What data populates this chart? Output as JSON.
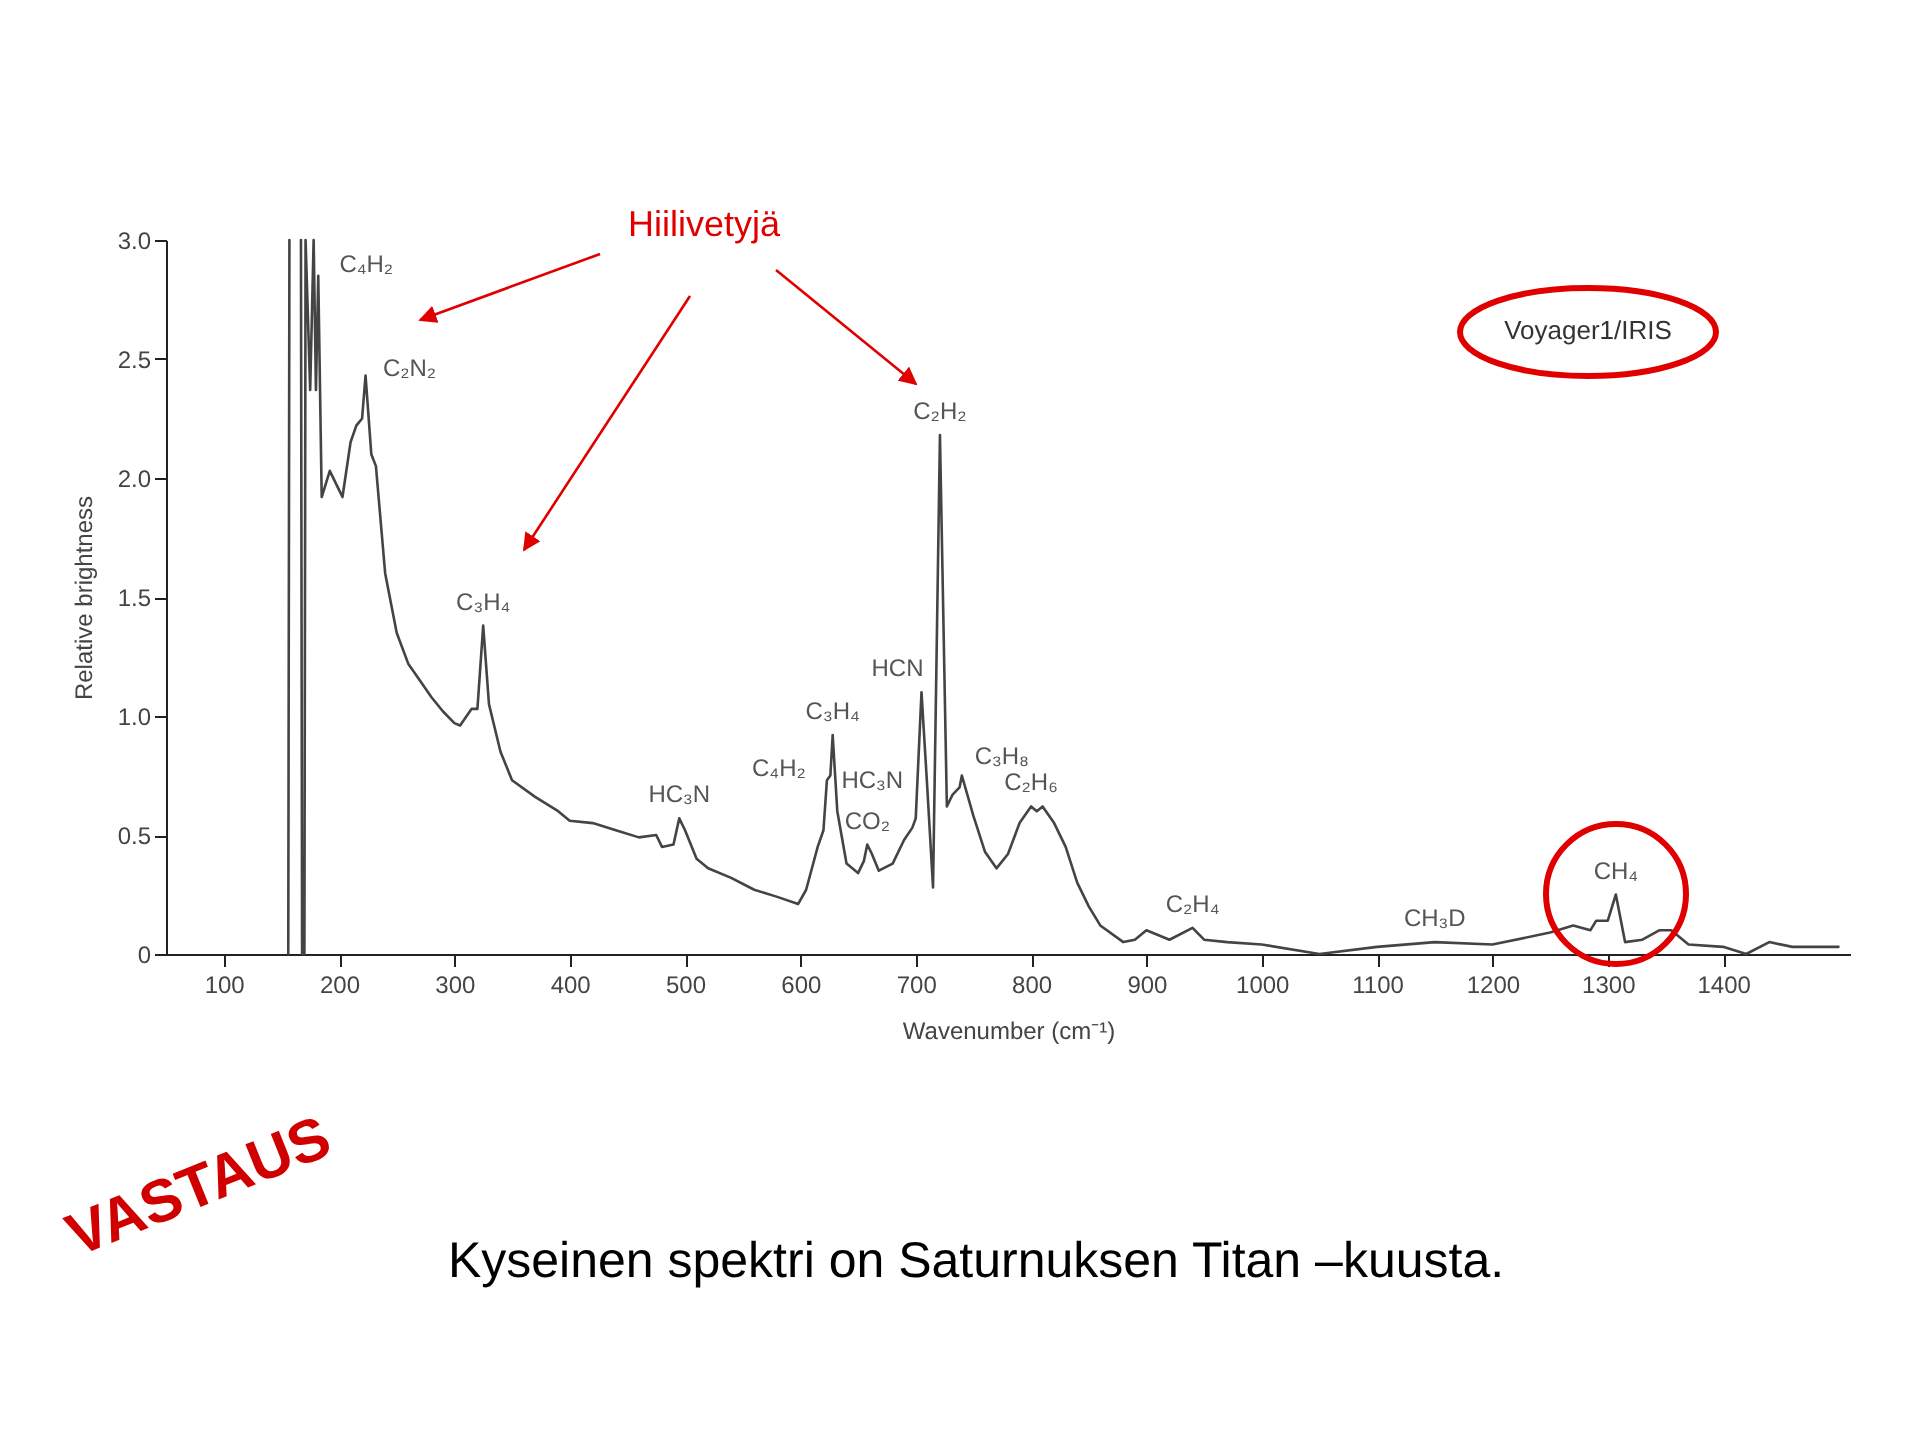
{
  "chart_data": {
    "type": "line",
    "xlabel": "Wavenumber (cm⁻¹)",
    "ylabel": "Relative brightness",
    "xlim": [
      50,
      1510
    ],
    "xticks": [
      100,
      200,
      300,
      400,
      500,
      600,
      700,
      800,
      900,
      1000,
      1100,
      1200,
      1300,
      1400
    ],
    "ylim": [
      0,
      3
    ],
    "yticks": [
      0,
      0.5,
      {
        "value": 1,
        "label": "1.0"
      },
      1.5,
      {
        "value": 2,
        "label": "2.0"
      },
      2.5,
      {
        "value": 3,
        "label": "3.0"
      }
    ],
    "grid": false,
    "legend": false,
    "marker": "none",
    "line_style": "solid",
    "x": [
      156,
      157,
      162,
      167,
      168,
      170,
      171,
      175,
      178,
      180,
      182,
      185,
      192,
      200,
      203,
      210,
      215,
      220,
      223,
      228,
      232,
      240,
      250,
      260,
      270,
      280,
      290,
      300,
      305,
      315,
      320,
      325,
      330,
      340,
      350,
      370,
      390,
      400,
      420,
      440,
      460,
      475,
      480,
      490,
      495,
      500,
      510,
      520,
      540,
      560,
      580,
      598,
      605,
      615,
      620,
      623,
      626,
      628,
      632,
      640,
      650,
      655,
      658,
      662,
      668,
      680,
      690,
      697,
      700,
      705,
      710,
      715,
      721,
      727,
      732,
      738,
      740,
      750,
      760,
      770,
      780,
      790,
      800,
      805,
      810,
      820,
      830,
      840,
      850,
      860,
      880,
      890,
      900,
      910,
      920,
      940,
      950,
      970,
      1000,
      1050,
      1100,
      1150,
      1200,
      1250,
      1270,
      1285,
      1290,
      1300,
      1307,
      1315,
      1330,
      1345,
      1355,
      1370,
      1400,
      1420,
      1440,
      1460,
      1500
    ],
    "series": [
      {
        "color": "#444444",
        "values": [
          0,
          3,
          null,
          3,
          0,
          0,
          3,
          2.37,
          3,
          2.37,
          2.85,
          1.92,
          2.03,
          1.95,
          1.92,
          2.15,
          2.22,
          2.25,
          2.43,
          2.1,
          2.05,
          1.6,
          1.35,
          1.22,
          1.15,
          1.08,
          1.02,
          0.97,
          0.96,
          1.03,
          1.03,
          1.38,
          1.05,
          0.85,
          0.73,
          0.66,
          0.6,
          0.56,
          0.55,
          0.52,
          0.49,
          0.5,
          0.45,
          0.46,
          0.57,
          0.52,
          0.4,
          0.36,
          0.32,
          0.27,
          0.24,
          0.21,
          0.27,
          0.45,
          0.52,
          0.73,
          0.75,
          0.92,
          0.6,
          0.38,
          0.34,
          0.39,
          0.46,
          0.42,
          0.35,
          0.38,
          0.48,
          0.53,
          0.57,
          1.1,
          0.7,
          0.28,
          2.18,
          0.62,
          0.67,
          0.7,
          0.75,
          0.58,
          0.43,
          0.36,
          0.42,
          0.55,
          0.62,
          0.6,
          0.62,
          0.55,
          0.45,
          0.3,
          0.2,
          0.12,
          0.05,
          0.06,
          0.1,
          0.08,
          0.06,
          0.11,
          0.06,
          0.05,
          0.04,
          0.0,
          0.03,
          0.05,
          0.04,
          0.09,
          0.12,
          0.1,
          0.14,
          0.14,
          0.25,
          0.05,
          0.06,
          0.1,
          0.1,
          0.04,
          0.03,
          0.0,
          0.05,
          0.03,
          0.03
        ]
      }
    ],
    "annotations": [
      {
        "text": "C₄H₂",
        "x": 182,
        "y": 2.85
      },
      {
        "text": "C₂N₂",
        "x": 223,
        "y": 2.43
      },
      {
        "text": "C₃H₄",
        "x": 325,
        "y": 1.38
      },
      {
        "text": "HC₃N",
        "x": 495,
        "y": 0.57
      },
      {
        "text": "C₄H₂",
        "x": 623,
        "y": 0.73
      },
      {
        "text": "C₃H₄",
        "x": 628,
        "y": 0.92
      },
      {
        "text": "HCN",
        "x": 705,
        "y": 1.1
      },
      {
        "text": "HC₃N",
        "x": 697,
        "y": 0.53
      },
      {
        "text": "CO₂",
        "x": 658,
        "y": 0.46
      },
      {
        "text": "C₂H₂",
        "x": 721,
        "y": 2.18
      },
      {
        "text": "C₃H₈",
        "x": 740,
        "y": 0.75
      },
      {
        "text": "C₂H₆",
        "x": 800,
        "y": 0.62
      },
      {
        "text": "C₂H₄",
        "x": 940,
        "y": 0.11
      },
      {
        "text": "CH₃D",
        "x": 1150,
        "y": 0.05
      },
      {
        "text": "CH₄",
        "x": 1307,
        "y": 0.25
      },
      "Hiilivetyjä",
      "Voyager1/IRIS",
      "VASTAUS",
      "Kyseinen spektri on Saturnuksen Titan –kuusta."
    ]
  }
}
